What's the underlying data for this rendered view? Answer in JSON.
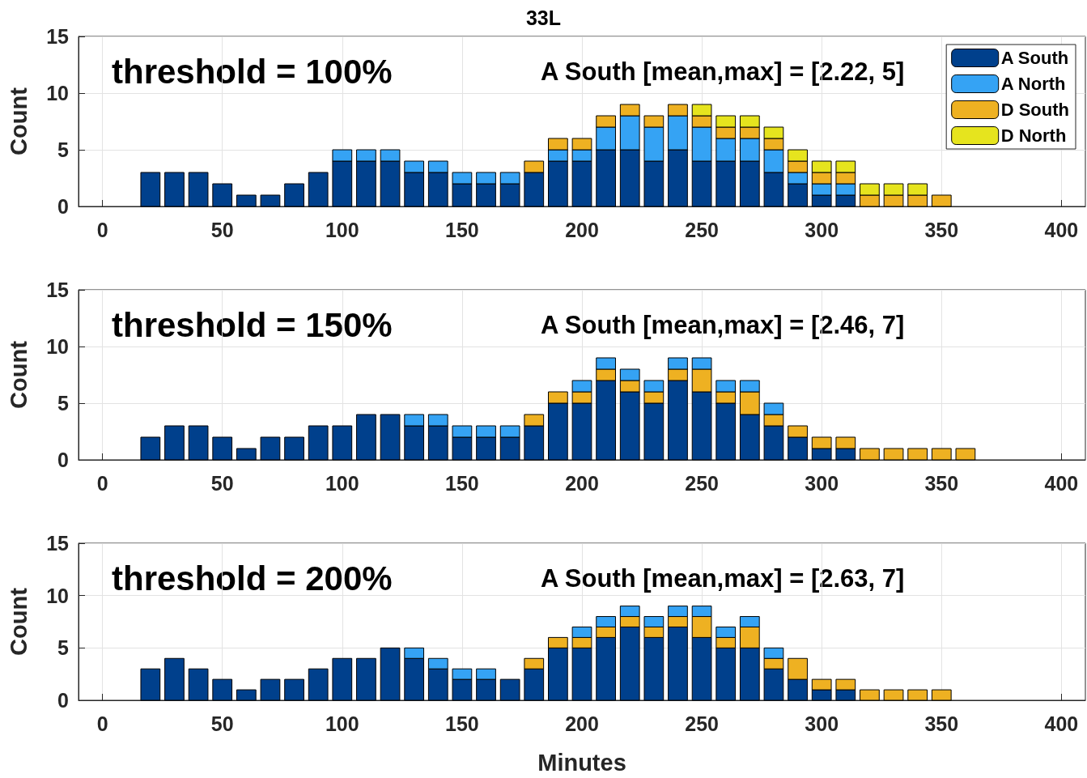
{
  "chart_data": [
    {
      "type": "bar",
      "title": "33L",
      "ylabel": "Count",
      "stacked": true,
      "grid": true,
      "legend": "top right",
      "annotations": [
        "threshold = 100%",
        "A South [mean,max] = [2.22, 5]"
      ],
      "x": [
        0,
        10,
        20,
        30,
        40,
        50,
        60,
        70,
        80,
        90,
        100,
        110,
        120,
        130,
        140,
        150,
        160,
        170,
        180,
        190,
        200,
        210,
        220,
        230,
        240,
        250,
        260,
        270,
        280,
        290,
        300,
        310,
        320,
        330,
        340,
        350,
        360,
        370,
        380,
        390,
        400
      ],
      "xlim": [
        -10,
        410
      ],
      "xticks": [
        0,
        50,
        100,
        150,
        200,
        250,
        300,
        350,
        400
      ],
      "ylim": [
        0,
        15
      ],
      "yticks": [
        0,
        5,
        10,
        15
      ],
      "series": [
        {
          "name": "A South",
          "color": "#00408c",
          "values": [
            0,
            0,
            3,
            3,
            3,
            2,
            1,
            1,
            2,
            3,
            4,
            4,
            4,
            3,
            3,
            2,
            2,
            2,
            3,
            4,
            4,
            5,
            5,
            4,
            5,
            4,
            4,
            4,
            3,
            2,
            1,
            1,
            0,
            0,
            0,
            0,
            0,
            0,
            0,
            0,
            0
          ]
        },
        {
          "name": "A North",
          "color": "#35a3f4",
          "values": [
            0,
            0,
            0,
            0,
            0,
            0,
            0,
            0,
            0,
            0,
            1,
            1,
            1,
            1,
            1,
            1,
            1,
            1,
            0,
            1,
            1,
            2,
            3,
            3,
            3,
            3,
            2,
            2,
            2,
            1,
            1,
            1,
            0,
            0,
            0,
            0,
            0,
            0,
            0,
            0,
            0
          ]
        },
        {
          "name": "D South",
          "color": "#eeb122",
          "values": [
            0,
            0,
            0,
            0,
            0,
            0,
            0,
            0,
            0,
            0,
            0,
            0,
            0,
            0,
            0,
            0,
            0,
            0,
            1,
            1,
            1,
            1,
            1,
            1,
            1,
            1,
            1,
            1,
            1,
            1,
            1,
            1,
            1,
            1,
            1,
            1,
            0,
            0,
            0,
            0,
            0
          ]
        },
        {
          "name": "D North",
          "color": "#e6e41e",
          "values": [
            0,
            0,
            0,
            0,
            0,
            0,
            0,
            0,
            0,
            0,
            0,
            0,
            0,
            0,
            0,
            0,
            0,
            0,
            0,
            0,
            0,
            0,
            0,
            0,
            0,
            1,
            1,
            1,
            1,
            1,
            1,
            1,
            1,
            1,
            1,
            0,
            0,
            0,
            0,
            0,
            0
          ]
        }
      ]
    },
    {
      "type": "bar",
      "ylabel": "Count",
      "stacked": true,
      "grid": true,
      "annotations": [
        "threshold = 150%",
        "A South [mean,max] = [2.46, 7]"
      ],
      "x": [
        0,
        10,
        20,
        30,
        40,
        50,
        60,
        70,
        80,
        90,
        100,
        110,
        120,
        130,
        140,
        150,
        160,
        170,
        180,
        190,
        200,
        210,
        220,
        230,
        240,
        250,
        260,
        270,
        280,
        290,
        300,
        310,
        320,
        330,
        340,
        350,
        360,
        370,
        380,
        390,
        400
      ],
      "xlim": [
        -10,
        410
      ],
      "xticks": [
        0,
        50,
        100,
        150,
        200,
        250,
        300,
        350,
        400
      ],
      "ylim": [
        0,
        15
      ],
      "yticks": [
        0,
        5,
        10,
        15
      ],
      "series": [
        {
          "color": "#00408c",
          "values": [
            0,
            0,
            2,
            3,
            3,
            2,
            1,
            2,
            2,
            3,
            3,
            4,
            4,
            3,
            3,
            2,
            2,
            2,
            3,
            5,
            5,
            7,
            6,
            5,
            7,
            6,
            5,
            4,
            3,
            2,
            1,
            1,
            0,
            0,
            0,
            0,
            0,
            0,
            0,
            0,
            0
          ]
        },
        {
          "color": "#eeb122",
          "values": [
            0,
            0,
            0,
            0,
            0,
            0,
            0,
            0,
            0,
            0,
            0,
            0,
            0,
            0,
            0,
            0,
            0,
            0,
            1,
            1,
            1,
            1,
            1,
            1,
            1,
            2,
            1,
            2,
            1,
            1,
            1,
            1,
            1,
            1,
            1,
            1,
            1,
            0,
            0,
            0,
            0
          ]
        },
        {
          "color": "#35a3f4",
          "values": [
            0,
            0,
            0,
            0,
            0,
            0,
            0,
            0,
            0,
            0,
            0,
            0,
            0,
            1,
            1,
            1,
            1,
            1,
            0,
            0,
            1,
            1,
            1,
            1,
            1,
            1,
            1,
            1,
            1,
            0,
            0,
            0,
            0,
            0,
            0,
            0,
            0,
            0,
            0,
            0,
            0
          ]
        }
      ]
    },
    {
      "type": "bar",
      "ylabel": "Count",
      "xlabel": "Minutes",
      "stacked": true,
      "grid": true,
      "annotations": [
        "threshold = 200%",
        "A South [mean,max] = [2.63, 7]"
      ],
      "x": [
        0,
        10,
        20,
        30,
        40,
        50,
        60,
        70,
        80,
        90,
        100,
        110,
        120,
        130,
        140,
        150,
        160,
        170,
        180,
        190,
        200,
        210,
        220,
        230,
        240,
        250,
        260,
        270,
        280,
        290,
        300,
        310,
        320,
        330,
        340,
        350,
        360,
        370,
        380,
        390,
        400
      ],
      "xlim": [
        -10,
        410
      ],
      "xticks": [
        0,
        50,
        100,
        150,
        200,
        250,
        300,
        350,
        400
      ],
      "ylim": [
        0,
        15
      ],
      "yticks": [
        0,
        5,
        10,
        15
      ],
      "series": [
        {
          "color": "#00408c",
          "values": [
            0,
            0,
            3,
            4,
            3,
            2,
            1,
            2,
            2,
            3,
            4,
            4,
            5,
            4,
            3,
            2,
            2,
            2,
            3,
            5,
            5,
            6,
            7,
            6,
            7,
            6,
            5,
            5,
            3,
            2,
            1,
            1,
            0,
            0,
            0,
            0,
            0,
            0,
            0,
            0,
            0
          ]
        },
        {
          "color": "#eeb122",
          "values": [
            0,
            0,
            0,
            0,
            0,
            0,
            0,
            0,
            0,
            0,
            0,
            0,
            0,
            0,
            0,
            0,
            0,
            0,
            1,
            1,
            1,
            1,
            1,
            1,
            1,
            2,
            1,
            2,
            1,
            2,
            1,
            1,
            1,
            1,
            1,
            1,
            0,
            0,
            0,
            0,
            0
          ]
        },
        {
          "color": "#35a3f4",
          "values": [
            0,
            0,
            0,
            0,
            0,
            0,
            0,
            0,
            0,
            0,
            0,
            0,
            0,
            1,
            1,
            1,
            1,
            0,
            0,
            0,
            1,
            1,
            1,
            1,
            1,
            1,
            1,
            1,
            1,
            0,
            0,
            0,
            0,
            0,
            0,
            0,
            0,
            0,
            0,
            0,
            0
          ]
        }
      ]
    }
  ]
}
